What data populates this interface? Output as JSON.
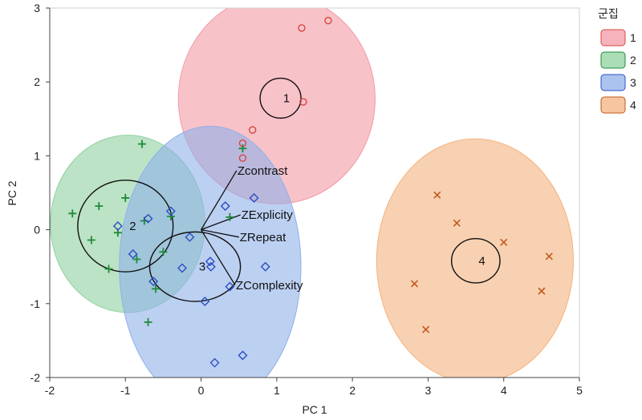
{
  "chart_data": {
    "type": "scatter",
    "title": "",
    "xlabel": "PC 1",
    "ylabel": "PC 2",
    "xlim": [
      -2,
      5
    ],
    "ylim": [
      -2,
      3
    ],
    "xticks": [
      -2,
      -1,
      0,
      1,
      2,
      3,
      4,
      5
    ],
    "yticks": [
      -2,
      -1,
      0,
      1,
      2,
      3
    ],
    "grid": false,
    "legend": {
      "title": "군집",
      "position": "right"
    },
    "series": [
      {
        "name": "1",
        "marker": "circle",
        "color": "#d9453f",
        "fill": "#f39aa5",
        "ellipse": {
          "cx": 1.0,
          "cy": 1.77,
          "rx": 1.3,
          "ry": 1.42
        },
        "centroid": {
          "x": 1.05,
          "y": 1.78,
          "rx": 0.27,
          "ry": 0.27
        },
        "points": [
          {
            "x": 1.33,
            "y": 2.73
          },
          {
            "x": 1.68,
            "y": 2.83
          },
          {
            "x": 1.35,
            "y": 1.73
          },
          {
            "x": 0.68,
            "y": 1.35
          },
          {
            "x": 0.55,
            "y": 1.17
          },
          {
            "x": 0.55,
            "y": 0.97
          }
        ]
      },
      {
        "name": "2",
        "marker": "plus",
        "color": "#1f8a3a",
        "fill": "#8fd19e",
        "ellipse": {
          "cx": -0.97,
          "cy": 0.08,
          "rx": 1.02,
          "ry": 1.2
        },
        "centroid": {
          "x": -1.0,
          "y": 0.05,
          "rx": 0.63,
          "ry": 0.62
        },
        "points": [
          {
            "x": -0.78,
            "y": 1.16
          },
          {
            "x": -1.7,
            "y": 0.22
          },
          {
            "x": -1.35,
            "y": 0.32
          },
          {
            "x": -1.0,
            "y": 0.43
          },
          {
            "x": -1.45,
            "y": -0.14
          },
          {
            "x": -1.1,
            "y": -0.04
          },
          {
            "x": -0.85,
            "y": -0.4
          },
          {
            "x": -1.22,
            "y": -0.53
          },
          {
            "x": -0.75,
            "y": 0.12
          },
          {
            "x": -0.4,
            "y": 0.18
          },
          {
            "x": -0.5,
            "y": -0.3
          },
          {
            "x": -0.6,
            "y": -0.8
          },
          {
            "x": -0.7,
            "y": -1.25
          },
          {
            "x": 0.38,
            "y": 0.17
          },
          {
            "x": 0.55,
            "y": 1.1
          }
        ]
      },
      {
        "name": "3",
        "marker": "diamond",
        "color": "#2c4fc4",
        "fill": "#8fb0ea",
        "ellipse": {
          "cx": 0.12,
          "cy": -0.5,
          "rx": 1.2,
          "ry": 1.9
        },
        "centroid": {
          "x": -0.08,
          "y": -0.5,
          "rx": 0.6,
          "ry": 0.47
        },
        "points": [
          {
            "x": 0.7,
            "y": 0.43
          },
          {
            "x": 0.32,
            "y": 0.32
          },
          {
            "x": -0.7,
            "y": 0.15
          },
          {
            "x": -1.1,
            "y": 0.05
          },
          {
            "x": -0.4,
            "y": 0.25
          },
          {
            "x": -0.9,
            "y": -0.33
          },
          {
            "x": -0.15,
            "y": -0.1
          },
          {
            "x": 0.12,
            "y": -0.43
          },
          {
            "x": 0.13,
            "y": -0.5
          },
          {
            "x": -0.25,
            "y": -0.52
          },
          {
            "x": -0.63,
            "y": -0.7
          },
          {
            "x": 0.38,
            "y": -0.77
          },
          {
            "x": 0.85,
            "y": -0.5
          },
          {
            "x": 0.05,
            "y": -0.97
          },
          {
            "x": 0.55,
            "y": -1.7
          },
          {
            "x": 0.18,
            "y": -1.8
          }
        ]
      },
      {
        "name": "4",
        "marker": "x",
        "color": "#c25a1e",
        "fill": "#f4b27e",
        "ellipse": {
          "cx": 3.62,
          "cy": -0.42,
          "rx": 1.3,
          "ry": 1.65
        },
        "centroid": {
          "x": 3.63,
          "y": -0.42,
          "rx": 0.32,
          "ry": 0.3
        },
        "points": [
          {
            "x": 3.12,
            "y": 0.47
          },
          {
            "x": 3.38,
            "y": 0.09
          },
          {
            "x": 4.0,
            "y": -0.17
          },
          {
            "x": 4.6,
            "y": -0.36
          },
          {
            "x": 2.82,
            "y": -0.73
          },
          {
            "x": 4.5,
            "y": -0.83
          },
          {
            "x": 2.97,
            "y": -1.35
          }
        ]
      }
    ],
    "vectors": [
      {
        "label": "Zcontrast",
        "x": 0.47,
        "y": 0.8
      },
      {
        "label": "ZExplicity",
        "x": 0.52,
        "y": 0.2
      },
      {
        "label": "ZRepeat",
        "x": 0.5,
        "y": -0.1
      },
      {
        "label": "ZComplexity",
        "x": 0.45,
        "y": -0.75
      }
    ]
  }
}
